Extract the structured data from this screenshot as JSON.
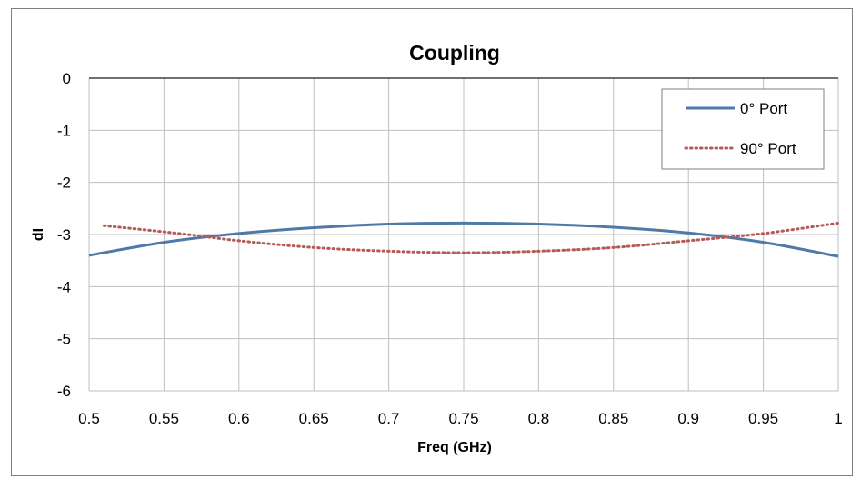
{
  "chart_data": {
    "type": "line",
    "title": "Coupling",
    "xlabel": "Freq (GHz)",
    "ylabel": "dI",
    "xlim": [
      0.5,
      1
    ],
    "ylim": [
      -6,
      0
    ],
    "xticks": [
      "0.5",
      "0.55",
      "0.6",
      "0.65",
      "0.7",
      "0.75",
      "0.8",
      "0.85",
      "0.9",
      "0.95",
      "1"
    ],
    "yticks": [
      "0",
      "-1",
      "-2",
      "-3",
      "-4",
      "-5",
      "-6"
    ],
    "grid": true,
    "legend_position": "top-right",
    "series": [
      {
        "name": "0° Port",
        "style": "solid",
        "color": "#4f7aa8",
        "x": [
          0.5,
          0.55,
          0.6,
          0.65,
          0.7,
          0.75,
          0.8,
          0.85,
          0.9,
          0.95,
          1.0
        ],
        "y": [
          -3.4,
          -3.15,
          -2.98,
          -2.87,
          -2.8,
          -2.78,
          -2.8,
          -2.86,
          -2.97,
          -3.15,
          -3.42
        ]
      },
      {
        "name": "90° Port",
        "style": "dotted",
        "color": "#b45a57",
        "x": [
          0.51,
          0.56,
          0.6,
          0.65,
          0.7,
          0.75,
          0.8,
          0.85,
          0.9,
          0.95,
          1.0
        ],
        "y": [
          -2.83,
          -2.98,
          -3.12,
          -3.25,
          -3.32,
          -3.35,
          -3.32,
          -3.25,
          -3.12,
          -2.98,
          -2.78
        ]
      }
    ]
  }
}
